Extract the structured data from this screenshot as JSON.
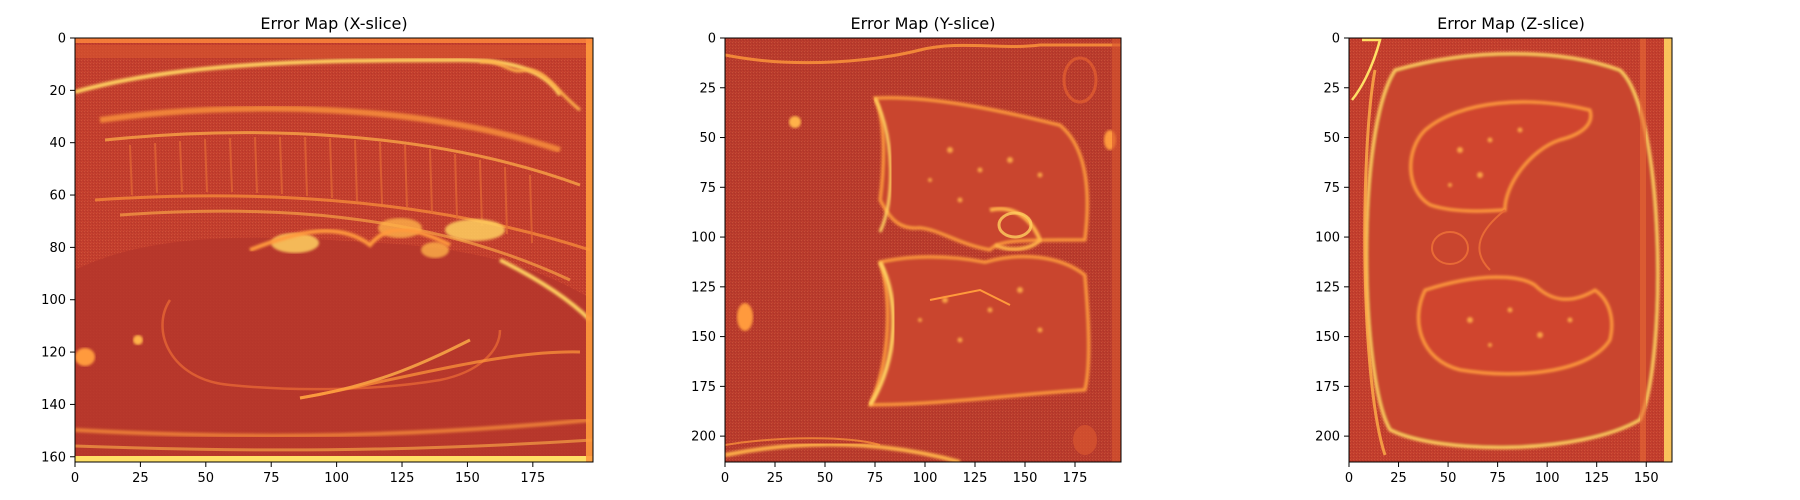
{
  "chart_data": [
    {
      "type": "heatmap",
      "title": "Error Map (X-slice)",
      "xlabel": "",
      "ylabel": "",
      "xlim": [
        0,
        198
      ],
      "ylim": [
        162,
        0
      ],
      "x_ticks": [
        0,
        25,
        50,
        75,
        100,
        125,
        150,
        175
      ],
      "y_ticks": [
        0,
        20,
        40,
        60,
        80,
        100,
        120,
        140,
        160
      ],
      "colormap": "YlOrRd",
      "colors": {
        "background": "#b5362c",
        "mid": "#d0442e",
        "high": "#ff9a3c",
        "peak": "#ffe066"
      }
    },
    {
      "type": "heatmap",
      "title": "Error Map (Y-slice)",
      "xlabel": "",
      "ylabel": "",
      "xlim": [
        0,
        198
      ],
      "ylim": [
        213,
        0
      ],
      "x_ticks": [
        0,
        25,
        50,
        75,
        100,
        125,
        150,
        175
      ],
      "y_ticks": [
        0,
        25,
        50,
        75,
        100,
        125,
        150,
        175,
        200
      ],
      "colormap": "YlOrRd",
      "colors": {
        "background": "#b5362c",
        "mid": "#d0442e",
        "high": "#ff9a3c",
        "peak": "#ffe066"
      }
    },
    {
      "type": "heatmap",
      "title": "Error Map (Z-slice)",
      "xlabel": "",
      "ylabel": "",
      "xlim": [
        0,
        163
      ],
      "ylim": [
        213,
        0
      ],
      "x_ticks": [
        0,
        25,
        50,
        75,
        100,
        125,
        150
      ],
      "y_ticks": [
        0,
        25,
        50,
        75,
        100,
        125,
        150,
        175,
        200
      ],
      "colormap": "YlOrRd",
      "colors": {
        "background": "#b5362c",
        "mid": "#d0442e",
        "high": "#ff9a3c",
        "peak": "#ffe066"
      }
    }
  ]
}
